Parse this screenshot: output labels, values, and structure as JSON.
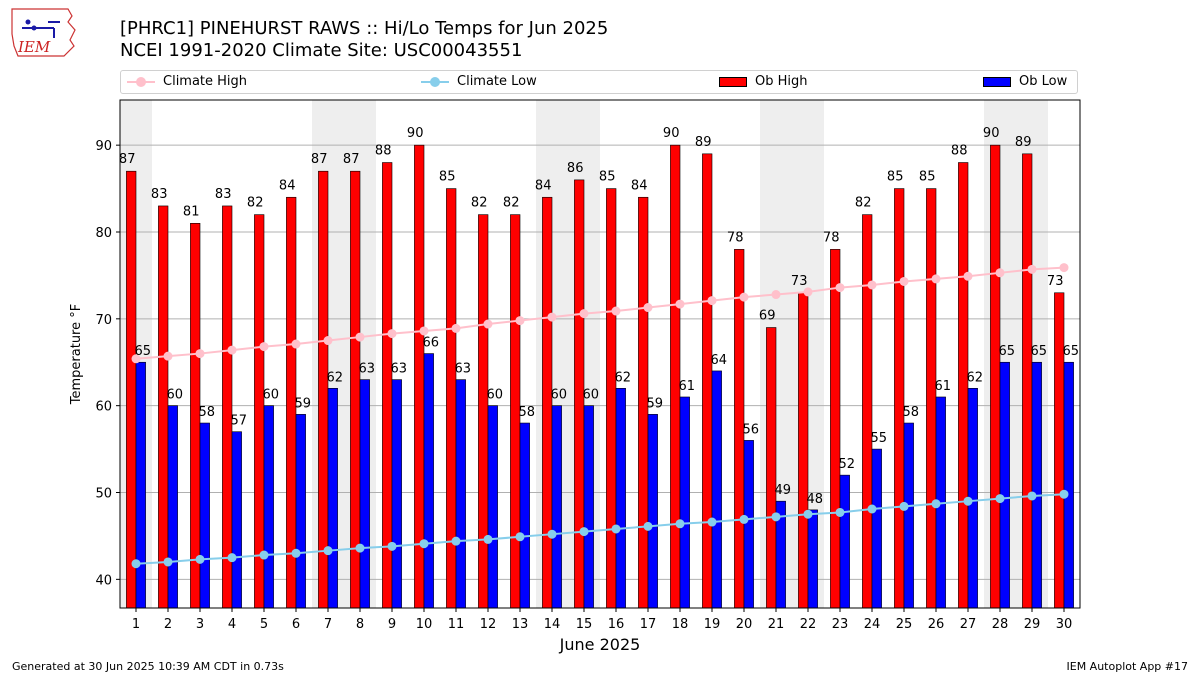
{
  "title": {
    "line1": "[PHRC1] PINEHURST RAWS :: Hi/Lo Temps for Jun 2025",
    "line2": "NCEI 1991-2020 Climate Site: USC00043551"
  },
  "logo": {
    "text": "IEM"
  },
  "footer": {
    "left": "Generated at 30 Jun 2025 10:39 AM CDT in 0.73s",
    "right": "IEM Autoplot App #17"
  },
  "colors": {
    "ob_high": "#ff0000",
    "ob_low": "#0000ff",
    "climate_high": "#ffc0cb",
    "climate_low": "#87ceeb",
    "weekend_band": "#eeeeee",
    "grid": "#b0b0b0"
  },
  "legend": {
    "climate_high": "Climate High",
    "climate_low": "Climate Low",
    "ob_high": "Ob High",
    "ob_low": "Ob Low"
  },
  "chart_data": {
    "type": "bar",
    "xlabel": "June 2025",
    "ylabel": "Temperature °F",
    "ylim": [
      36.7,
      95.2
    ],
    "yticks": [
      40,
      50,
      60,
      70,
      80,
      90
    ],
    "grid": true,
    "legend_position": "top",
    "categories": [
      "1",
      "2",
      "3",
      "4",
      "5",
      "6",
      "7",
      "8",
      "9",
      "10",
      "11",
      "12",
      "13",
      "14",
      "15",
      "16",
      "17",
      "18",
      "19",
      "20",
      "21",
      "22",
      "23",
      "24",
      "25",
      "26",
      "27",
      "28",
      "29",
      "30"
    ],
    "weekend_days": [
      1,
      7,
      8,
      14,
      15,
      21,
      22,
      28,
      29
    ],
    "series": [
      {
        "name": "Ob High",
        "kind": "bar",
        "values": [
          87,
          83,
          81,
          83,
          82,
          84,
          87,
          87,
          88,
          90,
          85,
          82,
          82,
          84,
          86,
          85,
          84,
          90,
          89,
          78,
          69,
          73,
          78,
          82,
          85,
          85,
          88,
          90,
          89,
          73
        ]
      },
      {
        "name": "Ob Low",
        "kind": "bar",
        "values": [
          65,
          60,
          58,
          57,
          60,
          59,
          62,
          63,
          63,
          66,
          63,
          60,
          58,
          60,
          60,
          62,
          59,
          61,
          64,
          56,
          49,
          48,
          52,
          55,
          58,
          61,
          62,
          65,
          65,
          65
        ]
      },
      {
        "name": "Climate High",
        "kind": "line",
        "values": [
          65.4,
          65.7,
          66.0,
          66.4,
          66.8,
          67.1,
          67.5,
          67.9,
          68.3,
          68.6,
          68.9,
          69.4,
          69.8,
          70.2,
          70.6,
          70.9,
          71.3,
          71.7,
          72.1,
          72.5,
          72.8,
          73.1,
          73.6,
          73.9,
          74.3,
          74.6,
          74.9,
          75.3,
          75.7,
          75.9
        ]
      },
      {
        "name": "Climate Low",
        "kind": "line",
        "values": [
          41.8,
          42.0,
          42.3,
          42.5,
          42.8,
          43.0,
          43.3,
          43.6,
          43.8,
          44.1,
          44.4,
          44.6,
          44.9,
          45.2,
          45.5,
          45.8,
          46.1,
          46.4,
          46.6,
          46.9,
          47.2,
          47.5,
          47.7,
          48.1,
          48.4,
          48.7,
          49.0,
          49.3,
          49.6,
          49.8
        ]
      }
    ]
  }
}
